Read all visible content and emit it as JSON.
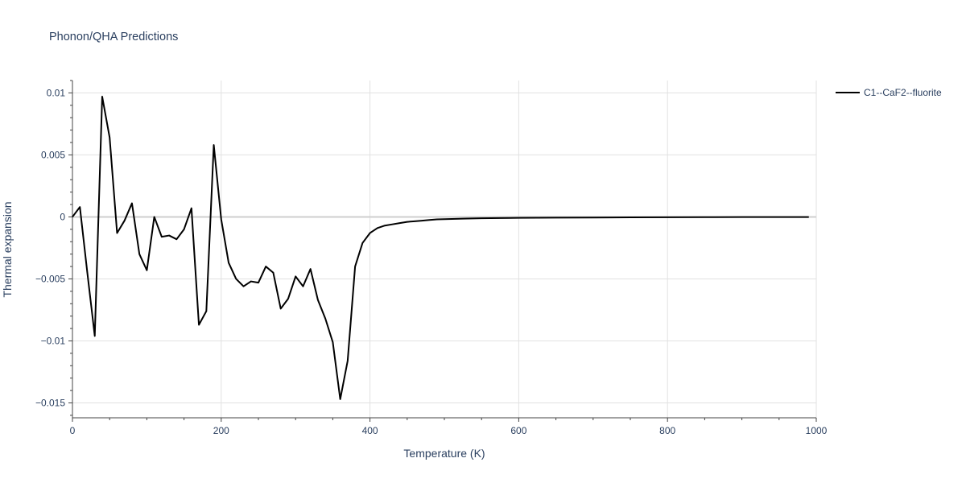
{
  "chart_data": {
    "type": "line",
    "title": "Phonon/QHA Predictions",
    "xlabel": "Temperature (K)",
    "ylabel": "Thermal expansion",
    "xlim": [
      0,
      1000
    ],
    "ylim": [
      -0.0162,
      0.011
    ],
    "xticks": [
      0,
      200,
      400,
      600,
      800,
      1000
    ],
    "xtick_labels": [
      "0",
      "200",
      "400",
      "600",
      "800",
      "1000"
    ],
    "yticks": [
      0.01,
      0.005,
      0,
      -0.005,
      -0.01,
      -0.015
    ],
    "ytick_labels": [
      "0.01",
      "0.005",
      "0",
      "−0.005",
      "−0.01",
      "−0.015"
    ],
    "grid": true,
    "legend_position": "top-right",
    "series": [
      {
        "name": "C1--CaF2--fluorite",
        "color": "#000000",
        "x": [
          0,
          10,
          20,
          30,
          40,
          50,
          60,
          70,
          80,
          90,
          100,
          110,
          120,
          130,
          140,
          150,
          160,
          170,
          180,
          190,
          200,
          210,
          220,
          230,
          240,
          250,
          260,
          270,
          280,
          290,
          300,
          310,
          320,
          330,
          340,
          350,
          360,
          370,
          380,
          390,
          400,
          410,
          420,
          430,
          440,
          450,
          460,
          470,
          480,
          490,
          500,
          525,
          550,
          575,
          600,
          650,
          700,
          750,
          800,
          850,
          900,
          950,
          990
        ],
        "y": [
          0.0,
          0.0008,
          -0.0045,
          -0.0096,
          0.0097,
          0.0064,
          -0.0013,
          -0.0003,
          0.0011,
          -0.003,
          -0.0043,
          0.0,
          -0.0016,
          -0.0015,
          -0.0018,
          -0.001,
          0.0007,
          -0.0087,
          -0.0076,
          0.0058,
          -0.0002,
          -0.0037,
          -0.005,
          -0.0056,
          -0.0052,
          -0.0053,
          -0.004,
          -0.0045,
          -0.0074,
          -0.0066,
          -0.0048,
          -0.0056,
          -0.0042,
          -0.0067,
          -0.0082,
          -0.0101,
          -0.0147,
          -0.0116,
          -0.004,
          -0.0021,
          -0.0013,
          -0.0009,
          -0.0007,
          -0.0006,
          -0.0005,
          -0.0004,
          -0.00035,
          -0.0003,
          -0.00025,
          -0.0002,
          -0.00018,
          -0.00014,
          -0.00011,
          -9e-05,
          -8e-05,
          -6e-05,
          -5e-05,
          -4e-05,
          -3e-05,
          -2e-05,
          -1.5e-05,
          -1e-05,
          -1e-05
        ]
      }
    ]
  }
}
